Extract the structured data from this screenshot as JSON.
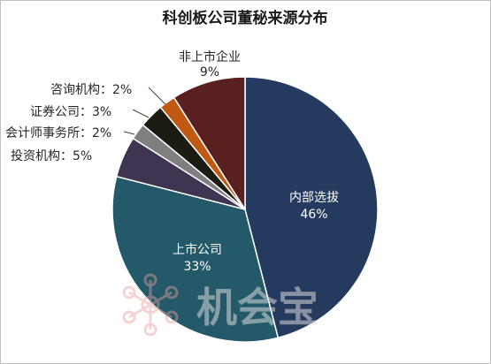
{
  "chart_data": {
    "type": "pie",
    "title": "科创板公司董秘来源分布",
    "start_angle_deg": 0,
    "direction": "clockwise",
    "slices": [
      {
        "name": "内部选拔",
        "value": 46,
        "pct_label": "46%",
        "color": "#243A5E",
        "label_style": "inside"
      },
      {
        "name": "上市公司",
        "value": 33,
        "pct_label": "33%",
        "color": "#24596A",
        "label_style": "inside"
      },
      {
        "name": "投资机构",
        "value": 5,
        "pct_label": "5%",
        "color": "#3F3552",
        "label_style": "outside"
      },
      {
        "name": "会计师事务所",
        "value": 2,
        "pct_label": "2%",
        "color": "#7F7F7F",
        "label_style": "outside"
      },
      {
        "name": "证券公司",
        "value": 3,
        "pct_label": "3%",
        "color": "#1C1C12",
        "label_style": "outside"
      },
      {
        "name": "咨询机构",
        "value": 2,
        "pct_label": "2%",
        "color": "#C05A12",
        "label_style": "outside"
      },
      {
        "name": "非上市企业",
        "value": 9,
        "pct_label": "9%",
        "color": "#5A1F1F",
        "label_style": "outside"
      }
    ],
    "legend": "none"
  },
  "watermark": {
    "text": "机会宝",
    "icon": "molecule-logo-icon",
    "color": "#E8A0A0"
  }
}
